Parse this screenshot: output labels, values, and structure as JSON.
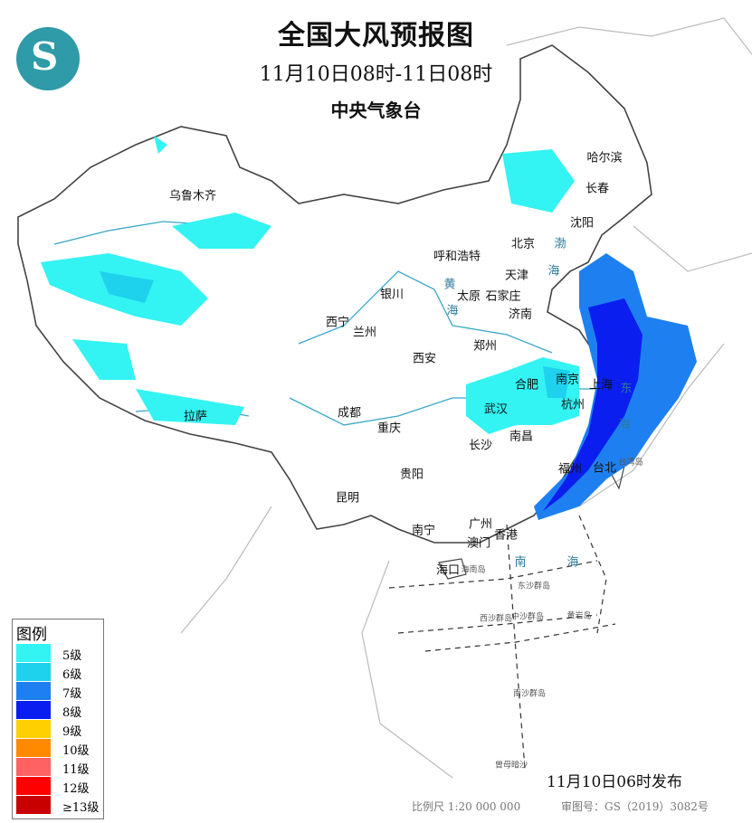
{
  "header": {
    "title": "全国大风预报图",
    "period": "11月10日08时-11日08时",
    "issuer": "中央气象台"
  },
  "logo": {
    "icon": "cma-logo",
    "color": "#2f9aa8"
  },
  "legend": {
    "title": "图例",
    "items": [
      {
        "label": "5级",
        "color": "#33f3f3"
      },
      {
        "label": "6级",
        "color": "#1ed2ee"
      },
      {
        "label": "7级",
        "color": "#1e80f0"
      },
      {
        "label": "8级",
        "color": "#0a1ef0"
      },
      {
        "label": "9级",
        "color": "#ffd000"
      },
      {
        "label": "10级",
        "color": "#ff8a00"
      },
      {
        "label": "11级",
        "color": "#ff6262"
      },
      {
        "label": "12级",
        "color": "#ff0000"
      },
      {
        "label": "≥13级",
        "color": "#c80000"
      }
    ]
  },
  "cities": [
    "乌鲁木齐",
    "哈尔滨",
    "长春",
    "沈阳",
    "呼和浩特",
    "北京",
    "天津",
    "石家庄",
    "太原",
    "济南",
    "银川",
    "西宁",
    "兰州",
    "郑州",
    "西安",
    "南京",
    "合肥",
    "上海",
    "杭州",
    "武汉",
    "成都",
    "重庆",
    "拉萨",
    "长沙",
    "南昌",
    "福州",
    "台北",
    "贵阳",
    "昆明",
    "南宁",
    "广州",
    "香港",
    "澳门",
    "海口"
  ],
  "small_labels": [
    "海南岛",
    "台湾岛",
    "西沙群岛",
    "中沙群岛",
    "东沙群岛",
    "黄岩岛",
    "南沙群岛",
    "曾母暗沙"
  ],
  "sea_labels": [
    "南",
    "海",
    "东",
    "海",
    "黄",
    "海",
    "渤",
    "海"
  ],
  "footer": {
    "issued": "11月10日06时发布",
    "scale": "比例尺 1:20 000 000",
    "map_number": "审图号：GS（2019）3082号"
  }
}
